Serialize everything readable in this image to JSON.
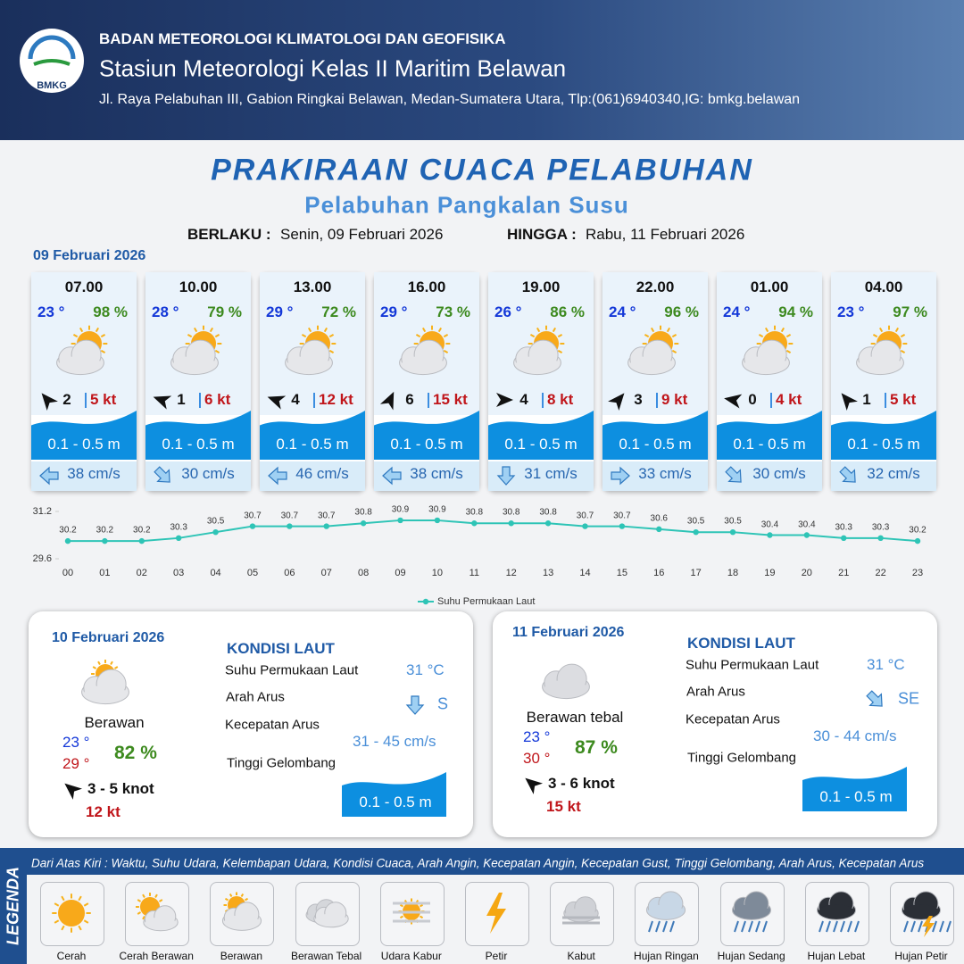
{
  "header": {
    "logo": "BMKG",
    "agency": "BADAN METEOROLOGI KLIMATOLOGI DAN GEOFISIKA",
    "station": "Stasiun Meteorologi Kelas II Maritim Belawan",
    "address": "Jl. Raya Pelabuhan III, Gabion Ringkai Belawan, Medan-Sumatera Utara, Tlp:(061)6940340,IG: bmkg.belawan"
  },
  "title": "PRAKIRAAN CUACA PELABUHAN",
  "subtitle": "Pelabuhan Pangkalan Susu",
  "validity": {
    "from_label": "BERLAKU :",
    "from": "Senin, 09 Februari 2026",
    "to_label": "HINGGA :",
    "to": "Rabu, 11 Februari 2026"
  },
  "day1": {
    "date": "09 Februari 2026",
    "cards": [
      {
        "time": "07.00",
        "temp": "23 °",
        "humidity": "98 %",
        "wind": "2",
        "gust": "5 kt",
        "wave": "0.1 - 0.5 m",
        "current": "38 cm/s"
      },
      {
        "time": "10.00",
        "temp": "28 °",
        "humidity": "79 %",
        "wind": "1",
        "gust": "6 kt",
        "wave": "0.1 - 0.5 m",
        "current": "30 cm/s"
      },
      {
        "time": "13.00",
        "temp": "29 °",
        "humidity": "72 %",
        "wind": "4",
        "gust": "12 kt",
        "wave": "0.1 - 0.5 m",
        "current": "46 cm/s"
      },
      {
        "time": "16.00",
        "temp": "29 °",
        "humidity": "73 %",
        "wind": "6",
        "gust": "15 kt",
        "wave": "0.1 - 0.5 m",
        "current": "38 cm/s"
      },
      {
        "time": "19.00",
        "temp": "26 °",
        "humidity": "86 %",
        "wind": "4",
        "gust": "8 kt",
        "wave": "0.1 - 0.5 m",
        "current": "31 cm/s"
      },
      {
        "time": "22.00",
        "temp": "24 °",
        "humidity": "96 %",
        "wind": "3",
        "gust": "9 kt",
        "wave": "0.1 - 0.5 m",
        "current": "33 cm/s"
      },
      {
        "time": "01.00",
        "temp": "24 °",
        "humidity": "94 %",
        "wind": "0",
        "gust": "4 kt",
        "wave": "0.1 - 0.5 m",
        "current": "30 cm/s"
      },
      {
        "time": "04.00",
        "temp": "23 °",
        "humidity": "97 %",
        "wind": "1",
        "gust": "5 kt",
        "wave": "0.1 - 0.5 m",
        "current": "32 cm/s"
      }
    ]
  },
  "chart_data": {
    "type": "line",
    "categories": [
      "00",
      "01",
      "02",
      "03",
      "04",
      "05",
      "06",
      "07",
      "08",
      "09",
      "10",
      "11",
      "12",
      "13",
      "14",
      "15",
      "16",
      "17",
      "18",
      "19",
      "20",
      "21",
      "22",
      "23"
    ],
    "series": [
      {
        "name": "Suhu Permukaan Laut",
        "color": "#2ec4b6",
        "values": [
          30.2,
          30.2,
          30.2,
          30.3,
          30.5,
          30.7,
          30.7,
          30.7,
          30.8,
          30.9,
          30.9,
          30.8,
          30.8,
          30.8,
          30.7,
          30.7,
          30.6,
          30.5,
          30.5,
          30.4,
          30.4,
          30.3,
          30.3,
          30.2
        ]
      }
    ],
    "ylim": [
      29.6,
      31.2
    ],
    "yticks": [
      29.6,
      31.2
    ],
    "grid": false,
    "legend": "bottom"
  },
  "day2": {
    "date": "10 Februari 2026",
    "condition": "Berawan",
    "temp_min": "23 °",
    "temp_max": "29 °",
    "humidity": "82 %",
    "wind": "3  - 5 knot",
    "gust": "12 kt",
    "sea_title": "KONDISI LAUT",
    "sst_label": "Suhu Permukaan Laut",
    "dir_label": "Arah Arus",
    "speed_label": "Kecepatan Arus",
    "wave_label": "Tinggi Gelombang",
    "sst": "31 °C",
    "current_dir": "S",
    "current_speed": "31 - 45 cm/s",
    "wave": "0.1 - 0.5 m"
  },
  "day3": {
    "date": "11 Februari 2026",
    "condition": "Berawan tebal",
    "temp_min": "23 °",
    "temp_max": "30 °",
    "humidity": "87 %",
    "wind": "3  - 6 knot",
    "gust": "15 kt",
    "sea_title": "KONDISI LAUT",
    "sst_label": "Suhu Permukaan Laut",
    "dir_label": "Arah Arus",
    "speed_label": "Kecepatan Arus",
    "wave_label": "Tinggi Gelombang",
    "sst": "31 °C",
    "current_dir": "SE",
    "current_speed": "30  - 44 cm/s",
    "wave": "0.1 - 0.5 m"
  },
  "legend": {
    "title": "LEGENDA",
    "description": "Dari Atas Kiri : Waktu, Suhu Udara, Kelembapan Udara, Kondisi Cuaca, Arah Angin, Kecepatan Angin, Kecepatan Gust, Tinggi Gelombang, Arah Arus, Kecepatan Arus",
    "items": [
      "Cerah",
      "Cerah Berawan",
      "Berawan",
      "Berawan Tebal",
      "Udara Kabur",
      "Petir",
      "Kabut",
      "Hujan Ringan",
      "Hujan Sedang",
      "Hujan Lebat",
      "Hujan Petir"
    ]
  }
}
